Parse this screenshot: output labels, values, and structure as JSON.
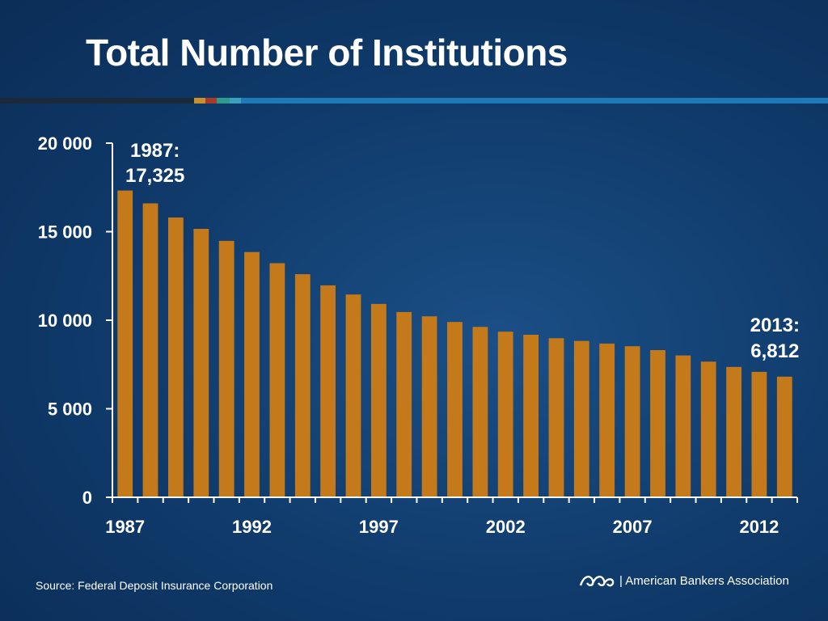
{
  "slide": {
    "title": "Total Number of Institutions",
    "source": "Source:  Federal Deposit Insurance Corporation",
    "org_name": "| American Bankers Association",
    "colors": {
      "background": "#0f3a6a",
      "bar": "#c47a1a",
      "rule_blue": "#1d79b8",
      "rule_swatches": [
        "#c8912e",
        "#a83a2a",
        "#2f9b8e",
        "#3aa0c0"
      ]
    }
  },
  "chart_data": {
    "type": "bar",
    "title": "Total Number of Institutions",
    "xlabel": "",
    "ylabel": "",
    "ylim": [
      0,
      20000
    ],
    "yticks": [
      "0",
      "5 000",
      "10 000",
      "15 000",
      "20 000"
    ],
    "xticks": [
      "1987",
      "1992",
      "1997",
      "2002",
      "2007",
      "2012"
    ],
    "categories": [
      "1987",
      "1988",
      "1989",
      "1990",
      "1991",
      "1992",
      "1993",
      "1994",
      "1995",
      "1996",
      "1997",
      "1998",
      "1999",
      "2000",
      "2001",
      "2002",
      "2003",
      "2004",
      "2005",
      "2006",
      "2007",
      "2008",
      "2009",
      "2010",
      "2011",
      "2012",
      "2013"
    ],
    "values": [
      17325,
      16600,
      15800,
      15160,
      14480,
      13850,
      13220,
      12600,
      11970,
      11450,
      10920,
      10460,
      10220,
      9900,
      9620,
      9350,
      9180,
      8980,
      8830,
      8680,
      8530,
      8310,
      8010,
      7660,
      7360,
      7080,
      6812
    ],
    "annotations": [
      {
        "label_line1": "1987:",
        "label_line2": "17,325",
        "category": "1987"
      },
      {
        "label_line1": "2013:",
        "label_line2": "6,812",
        "category": "2013"
      }
    ],
    "grid": false,
    "bar_color": "#c47a1a"
  }
}
